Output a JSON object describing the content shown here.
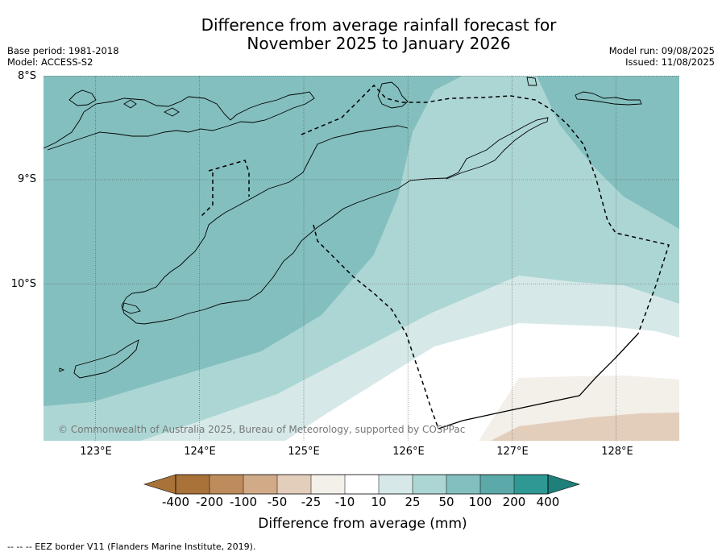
{
  "title_line1": "Difference from average rainfall forecast for",
  "title_line2": "November 2025 to January 2026",
  "base_period": "Base period: 1981-2018",
  "model": "Model: ACCESS-S2",
  "model_run": "Model run: 09/08/2025",
  "issued": "Issued: 11/08/2025",
  "latitudes": [
    "8°S",
    "9°S",
    "10°S"
  ],
  "longitudes": [
    "123°E",
    "124°E",
    "125°E",
    "126°E",
    "127°E",
    "128°E"
  ],
  "copyright": "© Commonwealth of Australia 2025, Bureau of Meteorology, supported by COSPPac",
  "colorbar": {
    "labels": [
      "-400",
      "-200",
      "-100",
      "-50",
      "-25",
      "-10",
      "10",
      "25",
      "50",
      "100",
      "200",
      "400"
    ],
    "colors": [
      "#a87238",
      "#be8c5c",
      "#d1ab88",
      "#e3cebb",
      "#f3efe9",
      "#ffffff",
      "#d6e9e8",
      "#acd6d4",
      "#83bfbe",
      "#5ba9a8",
      "#2f9894",
      "#1f7f7a"
    ],
    "title": "Difference from average (mm)"
  },
  "legend_footer": "--  --  -- EEZ border V11 (Flanders Marine Institute, 2019).",
  "map_colors": {
    "cat_50_100": "#83bfbe",
    "cat_25_50": "#acd6d4",
    "cat_10_25": "#d6e9e8",
    "cat_neutral": "#ffffff",
    "cat_m25_m10": "#f3efe9",
    "cat_m50_m25": "#e3cebb"
  }
}
